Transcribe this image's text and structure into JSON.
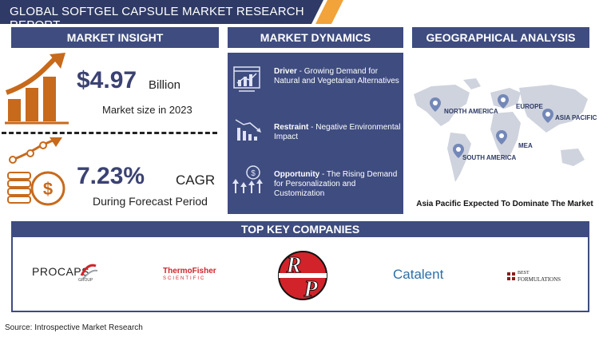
{
  "title": "GLOBAL SOFTGEL CAPSULE MARKET RESEARCH REPORT",
  "colors": {
    "navy": "#3f4c80",
    "orange": "#c76a1c",
    "title_bg": "#2f3b66",
    "accent": "#f2a33a"
  },
  "insight": {
    "header": "MARKET INSIGHT",
    "market_size_value": "$4.97",
    "market_size_unit": "Billion",
    "market_size_label": "Market size in 2023",
    "cagr_value": "7.23%",
    "cagr_unit": "CAGR",
    "cagr_label": "During Forecast Period"
  },
  "dynamics": {
    "header": "MARKET DYNAMICS",
    "items": [
      {
        "title": "Driver",
        "text": " - Growing Demand for Natural and Vegetarian Alternatives",
        "icon": "growth-chart-icon"
      },
      {
        "title": "Restraint",
        "text": " - Negative Environmental Impact",
        "icon": "decline-chart-icon"
      },
      {
        "title": "Opportunity",
        "text": " - The Rising Demand for Personalization and Customization",
        "icon": "opportunity-icon"
      }
    ]
  },
  "geo": {
    "header": "GEOGRAPHICAL ANALYSIS",
    "regions": [
      "NORTH AMERICA",
      "EUROPE",
      "ASIA PACIFIC",
      "MEA",
      "SOUTH AMERICA"
    ],
    "caption": "Asia Pacific Expected To Dominate The Market"
  },
  "companies": {
    "header": "TOP KEY COMPANIES",
    "logos": {
      "procaps": "PROCAPS",
      "procaps_sub": "GROUP",
      "thermo_top": "ThermoFisher",
      "thermo_bottom": "SCIENTIFIC",
      "rp_r": "R",
      "rp_p": "P",
      "catalent": "Catalent",
      "best_top": "BEST",
      "best_bottom": "FORMULATIONS"
    }
  },
  "source": "Source: Introspective Market Research"
}
